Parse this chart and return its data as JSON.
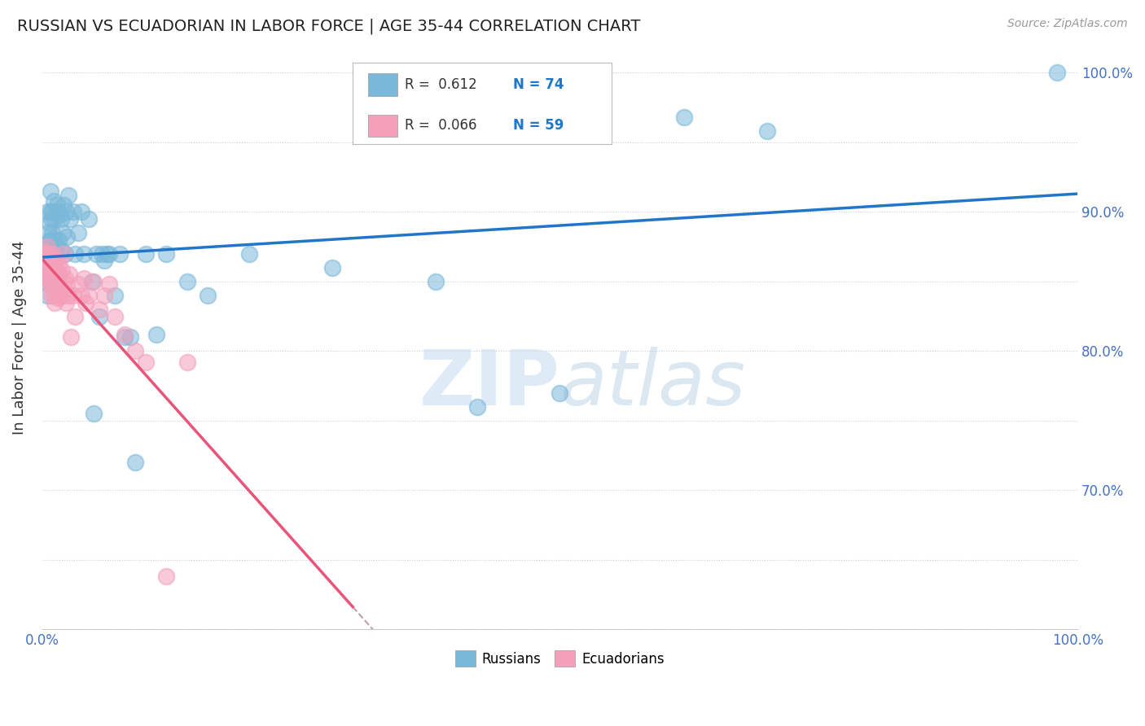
{
  "title": "RUSSIAN VS ECUADORIAN IN LABOR FORCE | AGE 35-44 CORRELATION CHART",
  "source": "Source: ZipAtlas.com",
  "ylabel": "In Labor Force | Age 35-44",
  "xlim": [
    0.0,
    1.0
  ],
  "ylim": [
    0.6,
    1.02
  ],
  "xticks": [
    0.0,
    0.1,
    0.2,
    0.3,
    0.4,
    0.5,
    0.6,
    0.7,
    0.8,
    0.9,
    1.0
  ],
  "xticklabels": [
    "0.0%",
    "",
    "",
    "",
    "",
    "",
    "",
    "",
    "",
    "",
    "100.0%"
  ],
  "ytick_positions": [
    0.6,
    0.65,
    0.7,
    0.75,
    0.8,
    0.85,
    0.9,
    0.95,
    1.0
  ],
  "ytick_labels_right": [
    "",
    "",
    "70.0%",
    "",
    "80.0%",
    "",
    "90.0%",
    "",
    "100.0%"
  ],
  "legend_R_russian": "R =  0.612",
  "legend_N_russian": "N = 74",
  "legend_R_ecuadorian": "R =  0.066",
  "legend_N_ecuadorian": "N = 59",
  "russian_color": "#7ab8d9",
  "ecuadorian_color": "#f4a0bb",
  "trend_russian_color": "#2176c7",
  "trend_ecuadorian_color": "#e8547a",
  "watermark_zip": "ZIP",
  "watermark_atlas": "atlas",
  "figsize": [
    14.06,
    8.92
  ],
  "dpi": 100,
  "russian_dots": [
    [
      0.001,
      0.856
    ],
    [
      0.002,
      0.862
    ],
    [
      0.002,
      0.87
    ],
    [
      0.003,
      0.875
    ],
    [
      0.003,
      0.85
    ],
    [
      0.004,
      0.868
    ],
    [
      0.004,
      0.858
    ],
    [
      0.005,
      0.9
    ],
    [
      0.005,
      0.872
    ],
    [
      0.005,
      0.84
    ],
    [
      0.006,
      0.885
    ],
    [
      0.006,
      0.87
    ],
    [
      0.007,
      0.892
    ],
    [
      0.007,
      0.88
    ],
    [
      0.007,
      0.862
    ],
    [
      0.008,
      0.915
    ],
    [
      0.008,
      0.9
    ],
    [
      0.008,
      0.87
    ],
    [
      0.009,
      0.895
    ],
    [
      0.009,
      0.88
    ],
    [
      0.01,
      0.9
    ],
    [
      0.01,
      0.885
    ],
    [
      0.01,
      0.87
    ],
    [
      0.011,
      0.908
    ],
    [
      0.011,
      0.87
    ],
    [
      0.012,
      0.895
    ],
    [
      0.013,
      0.88
    ],
    [
      0.013,
      0.87
    ],
    [
      0.014,
      0.905
    ],
    [
      0.014,
      0.875
    ],
    [
      0.015,
      0.9
    ],
    [
      0.016,
      0.88
    ],
    [
      0.017,
      0.898
    ],
    [
      0.018,
      0.895
    ],
    [
      0.019,
      0.872
    ],
    [
      0.02,
      0.885
    ],
    [
      0.021,
      0.905
    ],
    [
      0.022,
      0.87
    ],
    [
      0.023,
      0.9
    ],
    [
      0.024,
      0.882
    ],
    [
      0.025,
      0.912
    ],
    [
      0.027,
      0.895
    ],
    [
      0.03,
      0.9
    ],
    [
      0.032,
      0.87
    ],
    [
      0.035,
      0.885
    ],
    [
      0.038,
      0.9
    ],
    [
      0.04,
      0.87
    ],
    [
      0.045,
      0.895
    ],
    [
      0.048,
      0.85
    ],
    [
      0.05,
      0.755
    ],
    [
      0.052,
      0.87
    ],
    [
      0.055,
      0.825
    ],
    [
      0.058,
      0.87
    ],
    [
      0.06,
      0.865
    ],
    [
      0.062,
      0.87
    ],
    [
      0.065,
      0.87
    ],
    [
      0.07,
      0.84
    ],
    [
      0.075,
      0.87
    ],
    [
      0.08,
      0.81
    ],
    [
      0.085,
      0.81
    ],
    [
      0.09,
      0.72
    ],
    [
      0.1,
      0.87
    ],
    [
      0.11,
      0.812
    ],
    [
      0.12,
      0.87
    ],
    [
      0.14,
      0.85
    ],
    [
      0.16,
      0.84
    ],
    [
      0.2,
      0.87
    ],
    [
      0.28,
      0.86
    ],
    [
      0.38,
      0.85
    ],
    [
      0.42,
      0.76
    ],
    [
      0.5,
      0.77
    ],
    [
      0.62,
      0.968
    ],
    [
      0.7,
      0.958
    ],
    [
      0.98,
      1.0
    ]
  ],
  "ecuadorian_dots": [
    [
      0.001,
      0.872
    ],
    [
      0.002,
      0.868
    ],
    [
      0.002,
      0.858
    ],
    [
      0.003,
      0.87
    ],
    [
      0.003,
      0.855
    ],
    [
      0.004,
      0.865
    ],
    [
      0.004,
      0.848
    ],
    [
      0.005,
      0.875
    ],
    [
      0.005,
      0.86
    ],
    [
      0.006,
      0.868
    ],
    [
      0.006,
      0.855
    ],
    [
      0.007,
      0.87
    ],
    [
      0.007,
      0.85
    ],
    [
      0.008,
      0.865
    ],
    [
      0.008,
      0.858
    ],
    [
      0.009,
      0.86
    ],
    [
      0.009,
      0.84
    ],
    [
      0.01,
      0.87
    ],
    [
      0.01,
      0.85
    ],
    [
      0.011,
      0.862
    ],
    [
      0.011,
      0.84
    ],
    [
      0.012,
      0.858
    ],
    [
      0.012,
      0.835
    ],
    [
      0.013,
      0.865
    ],
    [
      0.013,
      0.848
    ],
    [
      0.014,
      0.858
    ],
    [
      0.014,
      0.84
    ],
    [
      0.015,
      0.852
    ],
    [
      0.015,
      0.838
    ],
    [
      0.016,
      0.862
    ],
    [
      0.016,
      0.84
    ],
    [
      0.017,
      0.855
    ],
    [
      0.018,
      0.845
    ],
    [
      0.019,
      0.858
    ],
    [
      0.02,
      0.84
    ],
    [
      0.021,
      0.87
    ],
    [
      0.022,
      0.852
    ],
    [
      0.023,
      0.835
    ],
    [
      0.024,
      0.848
    ],
    [
      0.025,
      0.84
    ],
    [
      0.026,
      0.855
    ],
    [
      0.028,
      0.81
    ],
    [
      0.03,
      0.84
    ],
    [
      0.032,
      0.825
    ],
    [
      0.035,
      0.848
    ],
    [
      0.038,
      0.84
    ],
    [
      0.04,
      0.852
    ],
    [
      0.042,
      0.835
    ],
    [
      0.045,
      0.84
    ],
    [
      0.05,
      0.85
    ],
    [
      0.055,
      0.83
    ],
    [
      0.06,
      0.84
    ],
    [
      0.065,
      0.848
    ],
    [
      0.07,
      0.825
    ],
    [
      0.08,
      0.812
    ],
    [
      0.09,
      0.8
    ],
    [
      0.1,
      0.792
    ],
    [
      0.12,
      0.638
    ],
    [
      0.14,
      0.792
    ]
  ]
}
